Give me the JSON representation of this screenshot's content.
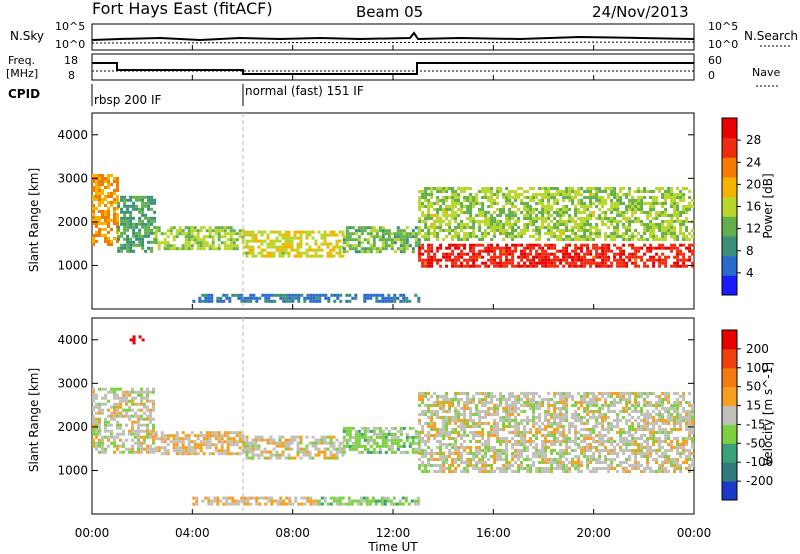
{
  "header": {
    "station": "Fort Hays East (fitACF)",
    "beam": "Beam 05",
    "date": "24/Nov/2013"
  },
  "top_panels": {
    "nsky_label": "N.Sky",
    "nsearch_label": "N.Search",
    "noise_ticks": [
      "10^5",
      "10^0"
    ],
    "freq_label_1": "Freq.",
    "freq_label_2": "[MHz]",
    "freq_ticks": [
      "18",
      "8"
    ],
    "nave_label": "Nave",
    "nave_ticks": [
      "60",
      "0"
    ],
    "cpid_label": "CPID",
    "cpid_segments": [
      {
        "name": "rbsp 200 IF",
        "start_hour": 0
      },
      {
        "name": "normal (fast) 151 IF",
        "start_hour": 6
      }
    ]
  },
  "axes": {
    "xlabel": "Time UT",
    "x_ticks": [
      "00:00",
      "04:00",
      "08:00",
      "12:00",
      "16:00",
      "20:00",
      "00:00"
    ],
    "ylabel": "Slant Range [km]",
    "y_ticks": [
      "1000",
      "2000",
      "3000",
      "4000"
    ]
  },
  "power_scale": {
    "label": "Power [dB]",
    "ticks": [
      "4",
      "8",
      "12",
      "16",
      "20",
      "24",
      "28"
    ],
    "colors": [
      "#1a1aff",
      "#2a6acc",
      "#3a8f7a",
      "#63b04a",
      "#b9d62a",
      "#f5b400",
      "#f57a00",
      "#ef2c10",
      "#e80000"
    ]
  },
  "velocity_scale": {
    "label": "Velocity [m s^-1]",
    "ticks": [
      "200",
      "100",
      "50",
      "15",
      "-15",
      "-50",
      "-100",
      "-200"
    ],
    "colors": [
      "#1a3acc",
      "#2f7a7a",
      "#3aa07a",
      "#7dd040",
      "#c0c0b8",
      "#f5a020",
      "#f57a10",
      "#ef4010",
      "#e80000"
    ]
  },
  "chart_data": [
    {
      "type": "heatmap",
      "title": "Power",
      "xlabel": "Time UT",
      "ylabel": "Slant Range [km]",
      "xlim": [
        0,
        24
      ],
      "ylim": [
        0,
        4500
      ],
      "colorbar_label": "Power [dB]",
      "colorbar_range": [
        0,
        30
      ],
      "x_unit": "hour UT",
      "regions": [
        {
          "start": 0.0,
          "end": 1.0,
          "min_range": 1500,
          "max_range": 3100,
          "value": 20
        },
        {
          "start": 1.0,
          "end": 2.5,
          "min_range": 1300,
          "max_range": 2600,
          "value": 10
        },
        {
          "start": 2.5,
          "end": 6.0,
          "min_range": 1400,
          "max_range": 1900,
          "value": 14
        },
        {
          "start": 6.0,
          "end": 10.0,
          "min_range": 1200,
          "max_range": 1800,
          "value": 16
        },
        {
          "start": 10.0,
          "end": 13.0,
          "min_range": 1300,
          "max_range": 1900,
          "value": 12
        },
        {
          "start": 13.0,
          "end": 24.0,
          "min_range": 1000,
          "max_range": 1500,
          "value": 26
        },
        {
          "start": 13.0,
          "end": 24.0,
          "min_range": 1600,
          "max_range": 2800,
          "value": 14
        },
        {
          "start": 4.0,
          "end": 13.0,
          "min_range": 200,
          "max_range": 350,
          "value": 6
        }
      ]
    },
    {
      "type": "heatmap",
      "title": "Velocity",
      "xlabel": "Time UT",
      "ylabel": "Slant Range [km]",
      "xlim": [
        0,
        24
      ],
      "ylim": [
        0,
        4500
      ],
      "colorbar_label": "Velocity [m s^-1]",
      "colorbar_range": [
        -200,
        200
      ],
      "x_unit": "hour UT",
      "regions": [
        {
          "start": 0.0,
          "end": 2.5,
          "min_range": 1400,
          "max_range": 2900,
          "value": 0
        },
        {
          "start": 2.5,
          "end": 6.0,
          "min_range": 1400,
          "max_range": 1900,
          "value": 20
        },
        {
          "start": 6.0,
          "end": 10.0,
          "min_range": 1300,
          "max_range": 1800,
          "value": 0
        },
        {
          "start": 10.0,
          "end": 13.0,
          "min_range": 1400,
          "max_range": 2000,
          "value": -40
        },
        {
          "start": 13.0,
          "end": 24.0,
          "min_range": 1000,
          "max_range": 2800,
          "value": 0
        },
        {
          "start": 1.5,
          "end": 2.0,
          "min_range": 3900,
          "max_range": 4100,
          "value": 200
        },
        {
          "start": 4.0,
          "end": 9.0,
          "min_range": 200,
          "max_range": 400,
          "value": 20
        },
        {
          "start": 9.0,
          "end": 13.0,
          "min_range": 200,
          "max_range": 400,
          "value": -40
        }
      ]
    }
  ]
}
